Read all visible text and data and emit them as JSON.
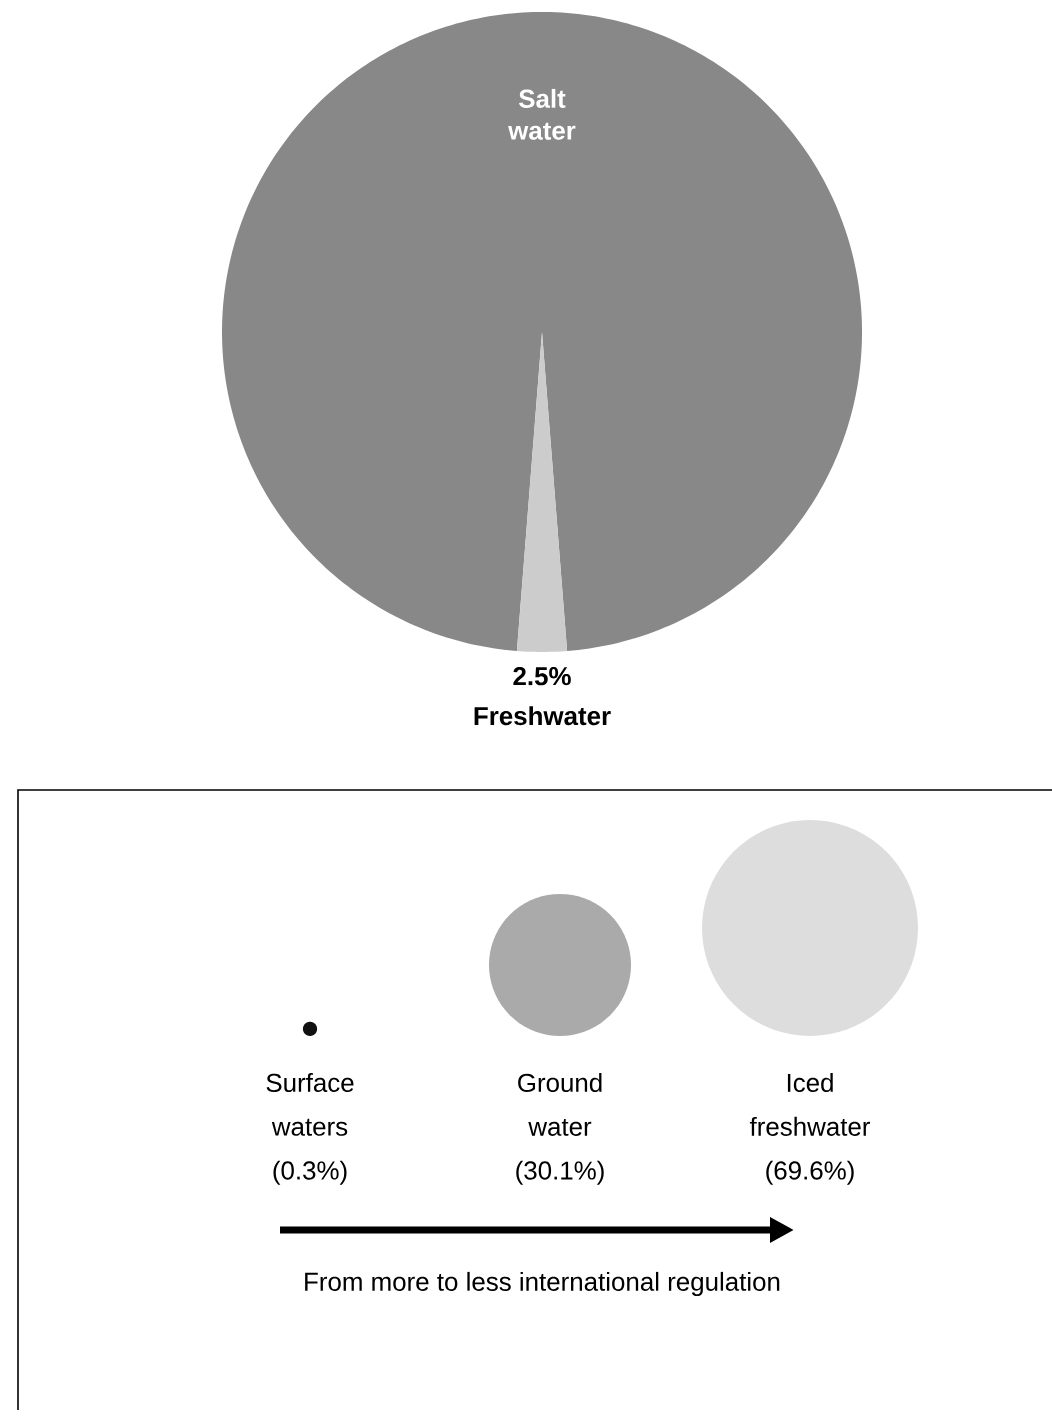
{
  "chart_data": [
    {
      "type": "pie",
      "categories": [
        "Salt water",
        "Freshwater"
      ],
      "values": [
        97.5,
        2.5
      ],
      "colors": [
        "#888888",
        "#cccccc"
      ],
      "value_labels": [
        null,
        "2.5%"
      ]
    },
    {
      "type": "other",
      "categories": [
        "Surface waters",
        "Ground water",
        "Iced freshwater"
      ],
      "values": [
        0.3,
        30.1,
        69.6
      ],
      "value_labels": [
        "(0.3%)",
        "(30.1%)",
        "(69.6%)"
      ],
      "colors": [
        "#111111",
        "#aaaaaa",
        "#dddddd"
      ],
      "annotations": [
        "From more to less international regulation"
      ]
    }
  ]
}
